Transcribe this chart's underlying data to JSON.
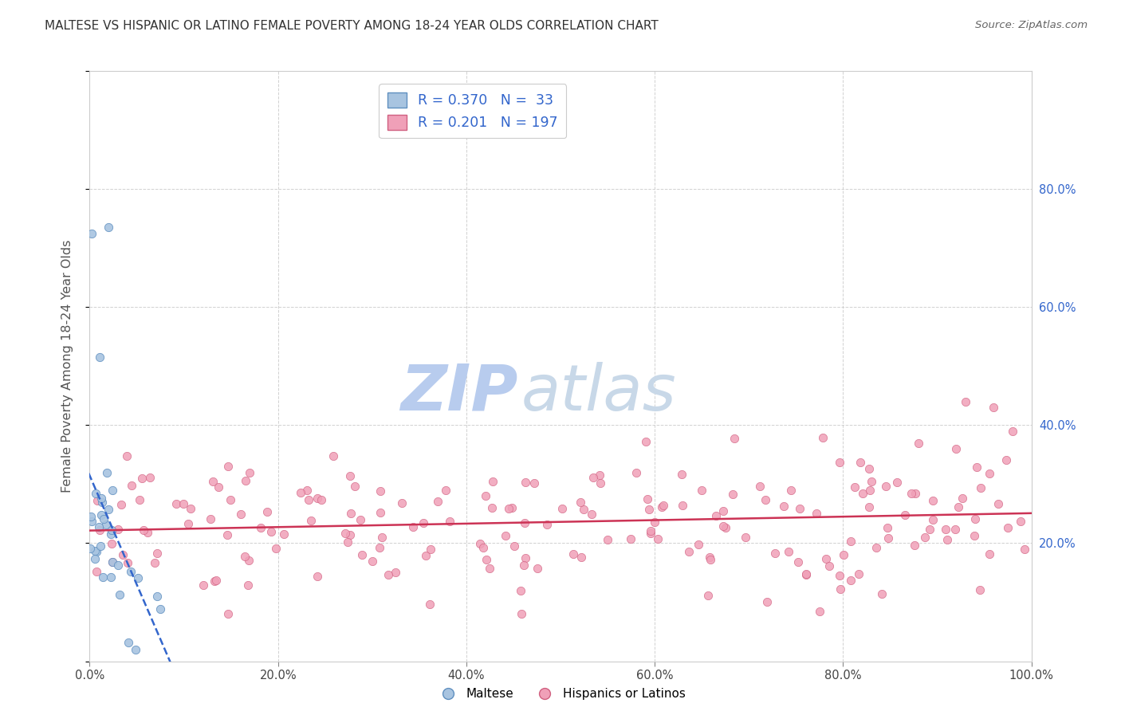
{
  "title": "MALTESE VS HISPANIC OR LATINO FEMALE POVERTY AMONG 18-24 YEAR OLDS CORRELATION CHART",
  "source": "Source: ZipAtlas.com",
  "ylabel": "Female Poverty Among 18-24 Year Olds",
  "maltese_R": 0.37,
  "maltese_N": 33,
  "hispanic_R": 0.201,
  "hispanic_N": 197,
  "maltese_scatter_color": "#a8c4e0",
  "maltese_edge_color": "#6090c0",
  "hispanic_scatter_color": "#f0a0b8",
  "hispanic_edge_color": "#d06080",
  "maltese_line_color": "#3366cc",
  "hispanic_line_color": "#cc3355",
  "legend_label_maltese": "Maltese",
  "legend_label_hispanic": "Hispanics or Latinos",
  "watermark_zip_color": "#b8ccee",
  "watermark_atlas_color": "#c8d8e8",
  "xlim": [
    0,
    1
  ],
  "ylim": [
    0,
    1
  ],
  "yticks": [
    0.0,
    0.2,
    0.4,
    0.6,
    0.8,
    1.0
  ],
  "xticks": [
    0.0,
    0.2,
    0.4,
    0.6,
    0.8,
    1.0
  ],
  "right_tick_labels": [
    "",
    "20.0%",
    "40.0%",
    "60.0%",
    "80.0%",
    ""
  ],
  "x_tick_labels": [
    "0.0%",
    "20.0%",
    "40.0%",
    "60.0%",
    "80.0%",
    "100.0%"
  ],
  "background_color": "#ffffff",
  "grid_color": "#cccccc",
  "title_color": "#333333",
  "right_tick_color": "#3366cc",
  "seed": 7
}
